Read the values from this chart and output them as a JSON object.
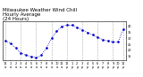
{
  "title": "Milwaukee Weather Wind Chill\nHourly Average\n(24 Hours)",
  "title_fontsize": 4.0,
  "x_hours": [
    0,
    1,
    2,
    3,
    4,
    5,
    6,
    7,
    8,
    9,
    10,
    11,
    12,
    13,
    14,
    15,
    16,
    17,
    18,
    19,
    20,
    21,
    22,
    23
  ],
  "y_values": [
    28,
    26,
    22,
    18,
    16,
    15,
    14,
    16,
    22,
    30,
    36,
    40,
    41,
    41,
    39,
    37,
    35,
    33,
    31,
    29,
    28,
    27,
    27,
    38
  ],
  "dot_color": "#0000cc",
  "grid_color": "#888888",
  "bg_color": "#ffffff",
  "ylim": [
    12,
    44
  ],
  "ytick_values": [
    15,
    20,
    25,
    30,
    35,
    40
  ],
  "ytick_labels": [
    "15",
    "20",
    "25",
    "30",
    "35",
    "40"
  ],
  "grid_positions": [
    0,
    3,
    6,
    9,
    12,
    15,
    18,
    21,
    23
  ],
  "xtick_labels": [
    "12",
    "1",
    "2",
    "3",
    "4",
    "5",
    "6",
    "7",
    "8",
    "9",
    "10",
    "11",
    "12",
    "1",
    "2",
    "3",
    "4",
    "5",
    "6",
    "7",
    "8",
    "9",
    "10",
    "11"
  ],
  "xtick_sub": [
    "a",
    "a",
    "a",
    "a",
    "a",
    "a",
    "a",
    "a",
    "a",
    "a",
    "a",
    "a",
    "p",
    "p",
    "p",
    "p",
    "p",
    "p",
    "p",
    "p",
    "p",
    "p",
    "p",
    "p"
  ]
}
